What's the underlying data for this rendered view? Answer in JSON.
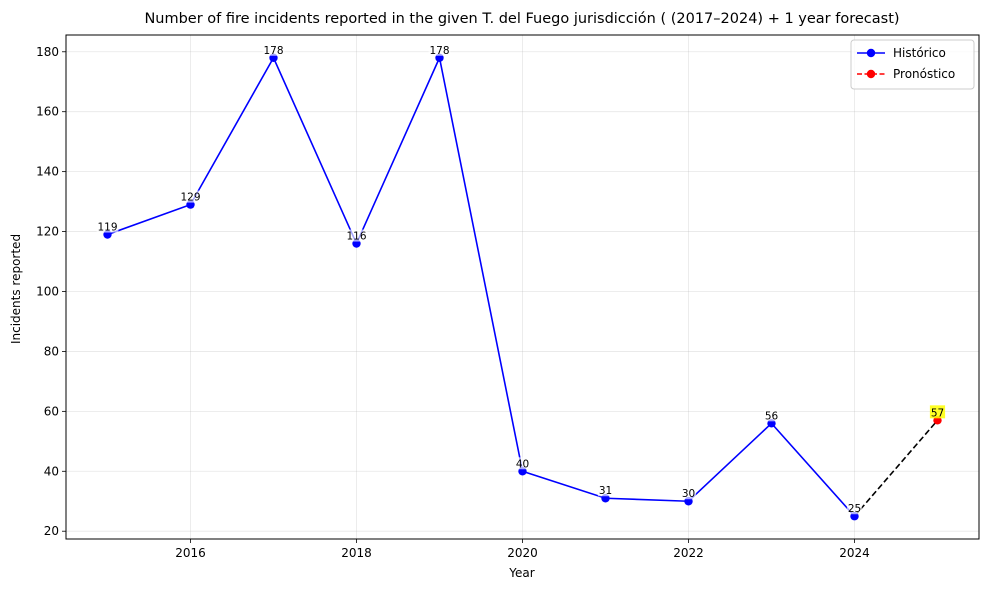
{
  "chart_data": {
    "type": "line",
    "title": "Number of fire incidents reported in the given T. del Fuego jurisdicción  ( (2017–2024)  + 1 year forecast)",
    "xlabel": "Year",
    "ylabel": "Incidents reported",
    "xlim": [
      2014.5,
      2025.5
    ],
    "ylim": [
      17.4,
      185.6
    ],
    "xticks": [
      2016,
      2018,
      2020,
      2022,
      2024
    ],
    "yticks": [
      20,
      40,
      60,
      80,
      100,
      120,
      140,
      160,
      180
    ],
    "grid": true,
    "legend_position": "top-right",
    "series": [
      {
        "name": "Histórico",
        "color": "#0000ff",
        "style": "solid",
        "x": [
          2015,
          2016,
          2017,
          2018,
          2019,
          2020,
          2021,
          2022,
          2023,
          2024
        ],
        "values": [
          119,
          129,
          178,
          116,
          178,
          40,
          31,
          30,
          56,
          25
        ],
        "labels": [
          "119",
          "129",
          "178",
          "116",
          "178",
          "40",
          "31",
          "30",
          "56",
          "25"
        ]
      },
      {
        "name": "Pronóstico",
        "color": "#ff0000",
        "style": "dashed",
        "x": [
          2025
        ],
        "values": [
          57
        ],
        "labels": [
          "57"
        ]
      }
    ],
    "connector": {
      "from": [
        2024,
        25
      ],
      "to": [
        2025,
        57
      ],
      "color": "#000000",
      "style": "dashed"
    },
    "forecast_label_highlight": "#ffff00"
  }
}
